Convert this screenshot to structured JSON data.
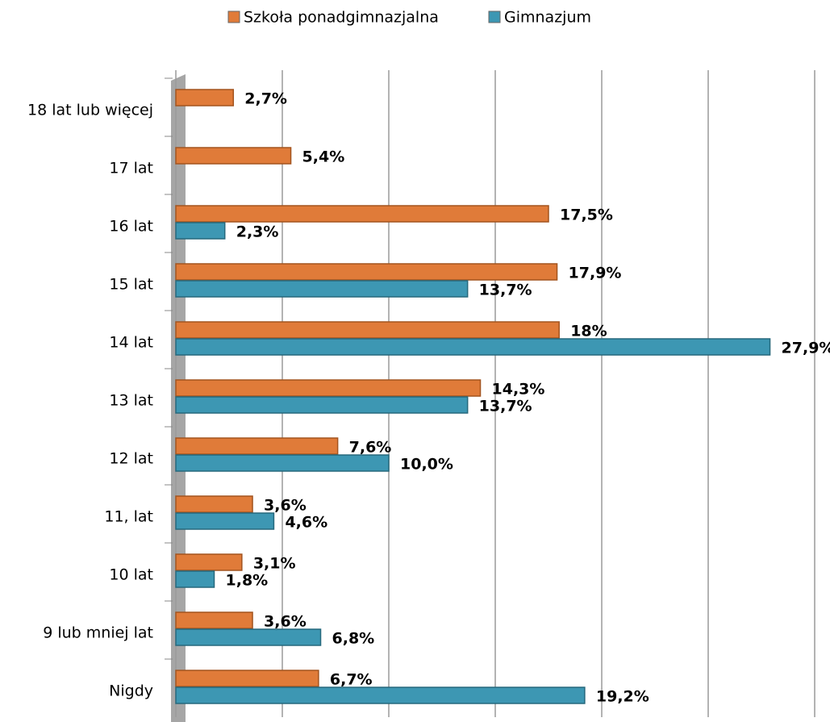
{
  "chart_data": {
    "type": "hbar",
    "categories": [
      "18 lat lub więcej",
      "17 lat",
      "16 lat",
      "15 lat",
      "14 lat",
      "13 lat",
      "12 lat",
      "11, lat",
      "10 lat",
      "9 lub mniej lat",
      "Nigdy"
    ],
    "series": [
      {
        "name": "Szkoła ponadgimnazjalna",
        "color": "#e07b39",
        "values": [
          2.7,
          5.4,
          17.5,
          17.9,
          18,
          14.3,
          7.6,
          3.6,
          3.1,
          3.6,
          6.7
        ],
        "value_labels": [
          "2,7%",
          "5,4%",
          "17,5%",
          "17,9%",
          "18%",
          "14,3%",
          "7,6%",
          "3,6%",
          "3,1%",
          "3,6%",
          "6,7%"
        ]
      },
      {
        "name": "Gimnazjum",
        "color": "#3d97b3",
        "values": [
          null,
          null,
          2.3,
          13.7,
          27.9,
          13.7,
          10.0,
          4.6,
          1.8,
          6.8,
          19.2
        ],
        "value_labels": [
          null,
          null,
          "2,3%",
          "13,7%",
          "27,9%",
          "13,7%",
          "10,0%",
          "4,6%",
          "1,8%",
          "6,8%",
          "19,2%"
        ]
      }
    ],
    "xlim": [
      0,
      30
    ],
    "xticks": [
      0,
      5,
      10,
      15,
      20,
      25,
      30
    ],
    "grid": true,
    "legend": "top"
  }
}
